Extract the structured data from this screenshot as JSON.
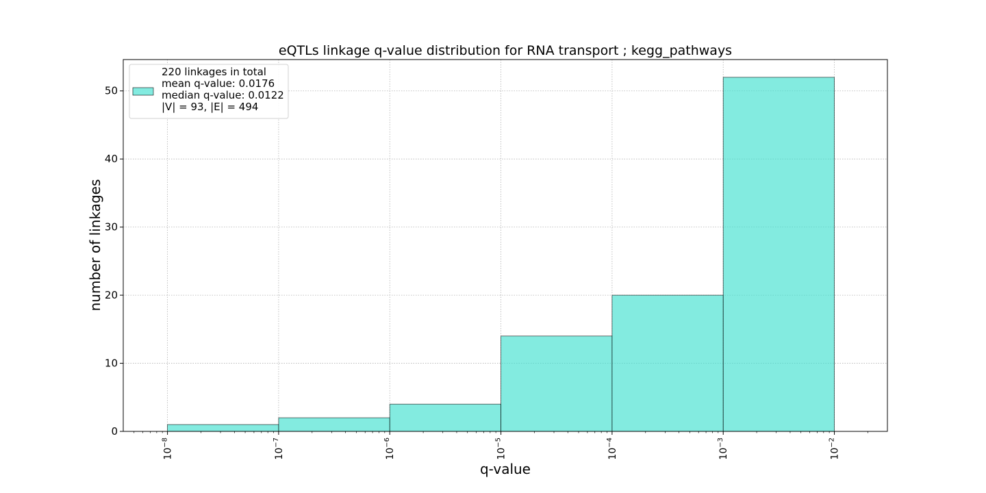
{
  "chart_data": {
    "type": "bar",
    "title": "eQTLs linkage q-value distribution for RNA transport ; kegg_pathways",
    "xlabel": "q-value",
    "ylabel": "number of linkages",
    "x_scale": "log10",
    "xlim": [
      4e-09,
      0.03
    ],
    "ylim": [
      0,
      54.6
    ],
    "grid": true,
    "bins": [
      {
        "x0": 1e-08,
        "x1": 1e-07,
        "value": 1
      },
      {
        "x0": 1e-07,
        "x1": 1e-06,
        "value": 2
      },
      {
        "x0": 1e-06,
        "x1": 1e-05,
        "value": 4
      },
      {
        "x0": 1e-05,
        "x1": 0.0001,
        "value": 14
      },
      {
        "x0": 0.0001,
        "x1": 0.001,
        "value": 20
      },
      {
        "x0": 0.001,
        "x1": 0.01,
        "value": 52
      }
    ],
    "x_ticks": [
      {
        "value": 1e-08,
        "base": "10",
        "exp": "−8"
      },
      {
        "value": 1e-07,
        "base": "10",
        "exp": "−7"
      },
      {
        "value": 1e-06,
        "base": "10",
        "exp": "−6"
      },
      {
        "value": 1e-05,
        "base": "10",
        "exp": "−5"
      },
      {
        "value": 0.0001,
        "base": "10",
        "exp": "−4"
      },
      {
        "value": 0.001,
        "base": "10",
        "exp": "−3"
      },
      {
        "value": 0.01,
        "base": "10",
        "exp": "−2"
      }
    ],
    "y_ticks": [
      0,
      10,
      20,
      30,
      40,
      50
    ],
    "legend": {
      "placement": "top-left",
      "lines": [
        "220 linkages in total",
        "mean q-value: 0.0176",
        "median q-value: 0.0122",
        "|V| = 93, |E| = 494"
      ]
    },
    "colors": {
      "bar_fill": "#40e0d0",
      "bar_opacity": 0.65,
      "bar_edge": "#000000",
      "grid": "#b0b0b0"
    }
  }
}
